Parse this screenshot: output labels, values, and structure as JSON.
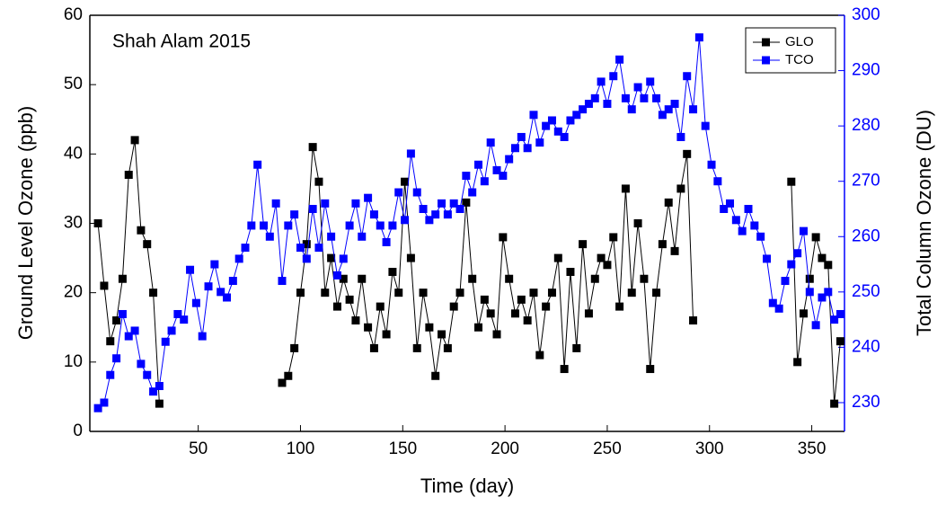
{
  "chart_data": {
    "type": "line",
    "annotation": "Shah Alam 2015",
    "x_label": "Time (day)",
    "y_label": "Ground Level Ozone (ppb)",
    "y2_label": "Total Column Ozone (DU)",
    "xlim": [
      -3,
      366
    ],
    "xticks": [
      50,
      100,
      150,
      200,
      250,
      300,
      350
    ],
    "ylim": [
      0,
      60
    ],
    "yticks": [
      0,
      10,
      20,
      30,
      40,
      50,
      60
    ],
    "y2lim": [
      224.8,
      300
    ],
    "y2ticks": [
      230,
      240,
      250,
      260,
      270,
      280,
      290,
      300
    ],
    "legend_position": "upper right",
    "x": [
      1,
      4,
      7,
      10,
      13,
      16,
      19,
      22,
      25,
      28,
      31,
      34,
      37,
      40,
      43,
      46,
      49,
      52,
      55,
      58,
      61,
      64,
      67,
      70,
      73,
      76,
      79,
      82,
      85,
      88,
      91,
      94,
      97,
      100,
      103,
      106,
      109,
      112,
      115,
      118,
      121,
      124,
      127,
      130,
      133,
      136,
      139,
      142,
      145,
      148,
      151,
      154,
      157,
      160,
      163,
      166,
      169,
      172,
      175,
      178,
      181,
      184,
      187,
      190,
      193,
      196,
      199,
      202,
      205,
      208,
      211,
      214,
      217,
      220,
      223,
      226,
      229,
      232,
      235,
      238,
      241,
      244,
      247,
      250,
      253,
      256,
      259,
      262,
      265,
      268,
      271,
      274,
      277,
      280,
      283,
      286,
      289,
      292,
      295,
      298,
      301,
      304,
      307,
      310,
      313,
      316,
      319,
      322,
      325,
      328,
      331,
      334,
      337,
      340,
      343,
      346,
      349,
      352,
      355,
      358,
      361,
      364
    ],
    "series": [
      {
        "name": "GLO",
        "color": "#000000",
        "values": [
          30,
          21,
          13,
          16,
          22,
          37,
          42,
          29,
          27,
          20,
          4,
          null,
          null,
          null,
          null,
          null,
          null,
          null,
          null,
          null,
          null,
          null,
          null,
          null,
          null,
          null,
          null,
          null,
          null,
          null,
          7,
          8,
          12,
          20,
          27,
          41,
          36,
          20,
          25,
          18,
          22,
          19,
          16,
          22,
          15,
          12,
          18,
          14,
          23,
          20,
          36,
          25,
          12,
          20,
          15,
          8,
          14,
          12,
          18,
          20,
          33,
          22,
          15,
          19,
          17,
          14,
          28,
          22,
          17,
          19,
          16,
          20,
          11,
          18,
          20,
          25,
          9,
          23,
          12,
          27,
          17,
          22,
          25,
          24,
          28,
          18,
          35,
          20,
          30,
          22,
          9,
          20,
          27,
          33,
          26,
          35,
          40,
          16,
          null,
          null,
          null,
          null,
          null,
          null,
          null,
          null,
          null,
          null,
          null,
          null,
          null,
          null,
          null,
          36,
          10,
          17,
          22,
          28,
          25,
          24,
          4,
          13
        ]
      },
      {
        "name": "TCO",
        "color": "#0000ff",
        "axis": "y2",
        "values": [
          229,
          230,
          235,
          238,
          246,
          242,
          243,
          237,
          235,
          232,
          233,
          241,
          243,
          246,
          245,
          254,
          248,
          242,
          251,
          255,
          250,
          249,
          252,
          256,
          258,
          262,
          273,
          262,
          260,
          266,
          252,
          262,
          264,
          258,
          256,
          265,
          258,
          266,
          260,
          253,
          256,
          262,
          266,
          260,
          267,
          264,
          262,
          259,
          262,
          268,
          263,
          275,
          268,
          265,
          263,
          264,
          266,
          264,
          266,
          265,
          271,
          268,
          273,
          270,
          277,
          272,
          271,
          274,
          276,
          278,
          276,
          282,
          277,
          280,
          281,
          279,
          278,
          281,
          282,
          283,
          284,
          285,
          288,
          284,
          289,
          292,
          285,
          283,
          287,
          285,
          288,
          285,
          282,
          283,
          284,
          278,
          289,
          283,
          296,
          280,
          273,
          270,
          265,
          266,
          263,
          261,
          265,
          262,
          260,
          256,
          248,
          247,
          252,
          255,
          257,
          261,
          250,
          244,
          249,
          250,
          245,
          246
        ]
      }
    ]
  }
}
